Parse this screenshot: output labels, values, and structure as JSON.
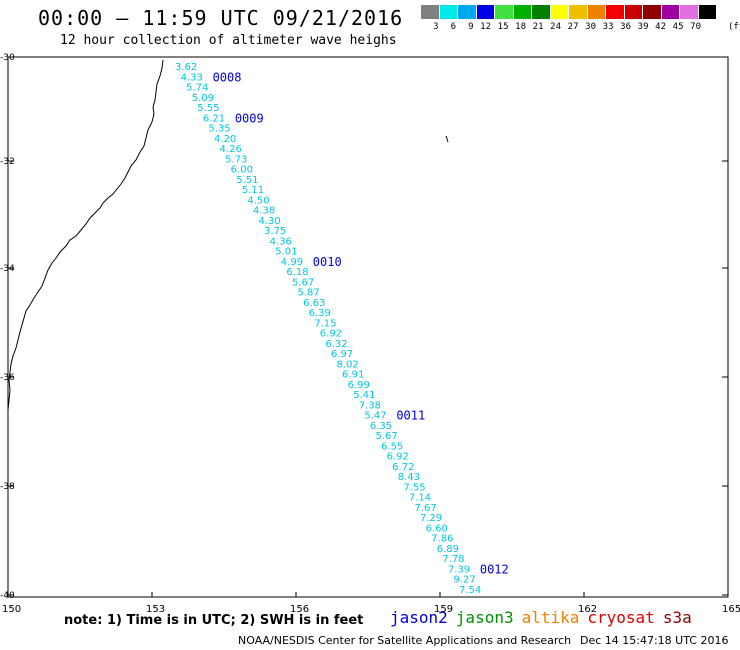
{
  "title": "00:00 – 11:59 UTC 09/21/2016",
  "subtitle": "12 hour collection of altimeter wave heighs",
  "legend": {
    "unit": "(ft)",
    "labels": [
      "3",
      "6",
      "9",
      "12",
      "15",
      "18",
      "21",
      "24",
      "27",
      "30",
      "33",
      "36",
      "39",
      "42",
      "45",
      "70"
    ],
    "colors": [
      "#808080",
      "#00e8e8",
      "#00a8f0",
      "#0000e8",
      "#40e040",
      "#00b000",
      "#008000",
      "#ffff00",
      "#f0c000",
      "#f08000",
      "#f00000",
      "#c80000",
      "#900000",
      "#a000a0",
      "#e070e0",
      "#000000"
    ]
  },
  "map": {
    "lon_ticks": [
      "150",
      "153",
      "156",
      "159",
      "162",
      "165"
    ],
    "lat_ticks": [
      "-30",
      "-32",
      "-34",
      "-36",
      "-38",
      "-40"
    ],
    "track_color": "#00c8e0",
    "time_color": "#0000e0",
    "swh": [
      "3.62",
      "4.33",
      "5.74",
      "5.09",
      "5.55",
      "6.21",
      "5.35",
      "4.20",
      "4.26",
      "5.73",
      "6.00",
      "5.51",
      "5.11",
      "4.50",
      "4.38",
      "4.30",
      "3.75",
      "4.36",
      "5.01",
      "4.99",
      "6.18",
      "5.67",
      "5.87",
      "6.63",
      "6.39",
      "7.15",
      "6.92",
      "6.32",
      "6.97",
      "8.02",
      "6.91",
      "6.99",
      "5.41",
      "7.38",
      "5.47",
      "6.35",
      "5.67",
      "6.55",
      "6.92",
      "6.72",
      "8.43",
      "7.55",
      "7.14",
      "7.67",
      "7.29",
      "6.60",
      "7.86",
      "6.89",
      "7.78",
      "7.39",
      "9.27",
      "7.54"
    ],
    "time_labels": [
      {
        "text": "0008",
        "index": 1
      },
      {
        "text": "0009",
        "index": 5
      },
      {
        "text": "0010",
        "index": 19
      },
      {
        "text": "0011",
        "index": 34
      },
      {
        "text": "0012",
        "index": 49
      }
    ]
  },
  "note": "note: 1) Time is in UTC; 2) SWH is in feet",
  "satellites": [
    {
      "name": "jason2",
      "color": "#0000e0"
    },
    {
      "name": "jason3",
      "color": "#009000"
    },
    {
      "name": "altika",
      "color": "#f08000"
    },
    {
      "name": "cryosat",
      "color": "#e00000"
    },
    {
      "name": "s3a",
      "color": "#900000"
    }
  ],
  "credit": "NOAA/NESDIS Center for Satellite Applications and Research",
  "timestamp": "Dec 14 15:47:18 UTC 2016"
}
